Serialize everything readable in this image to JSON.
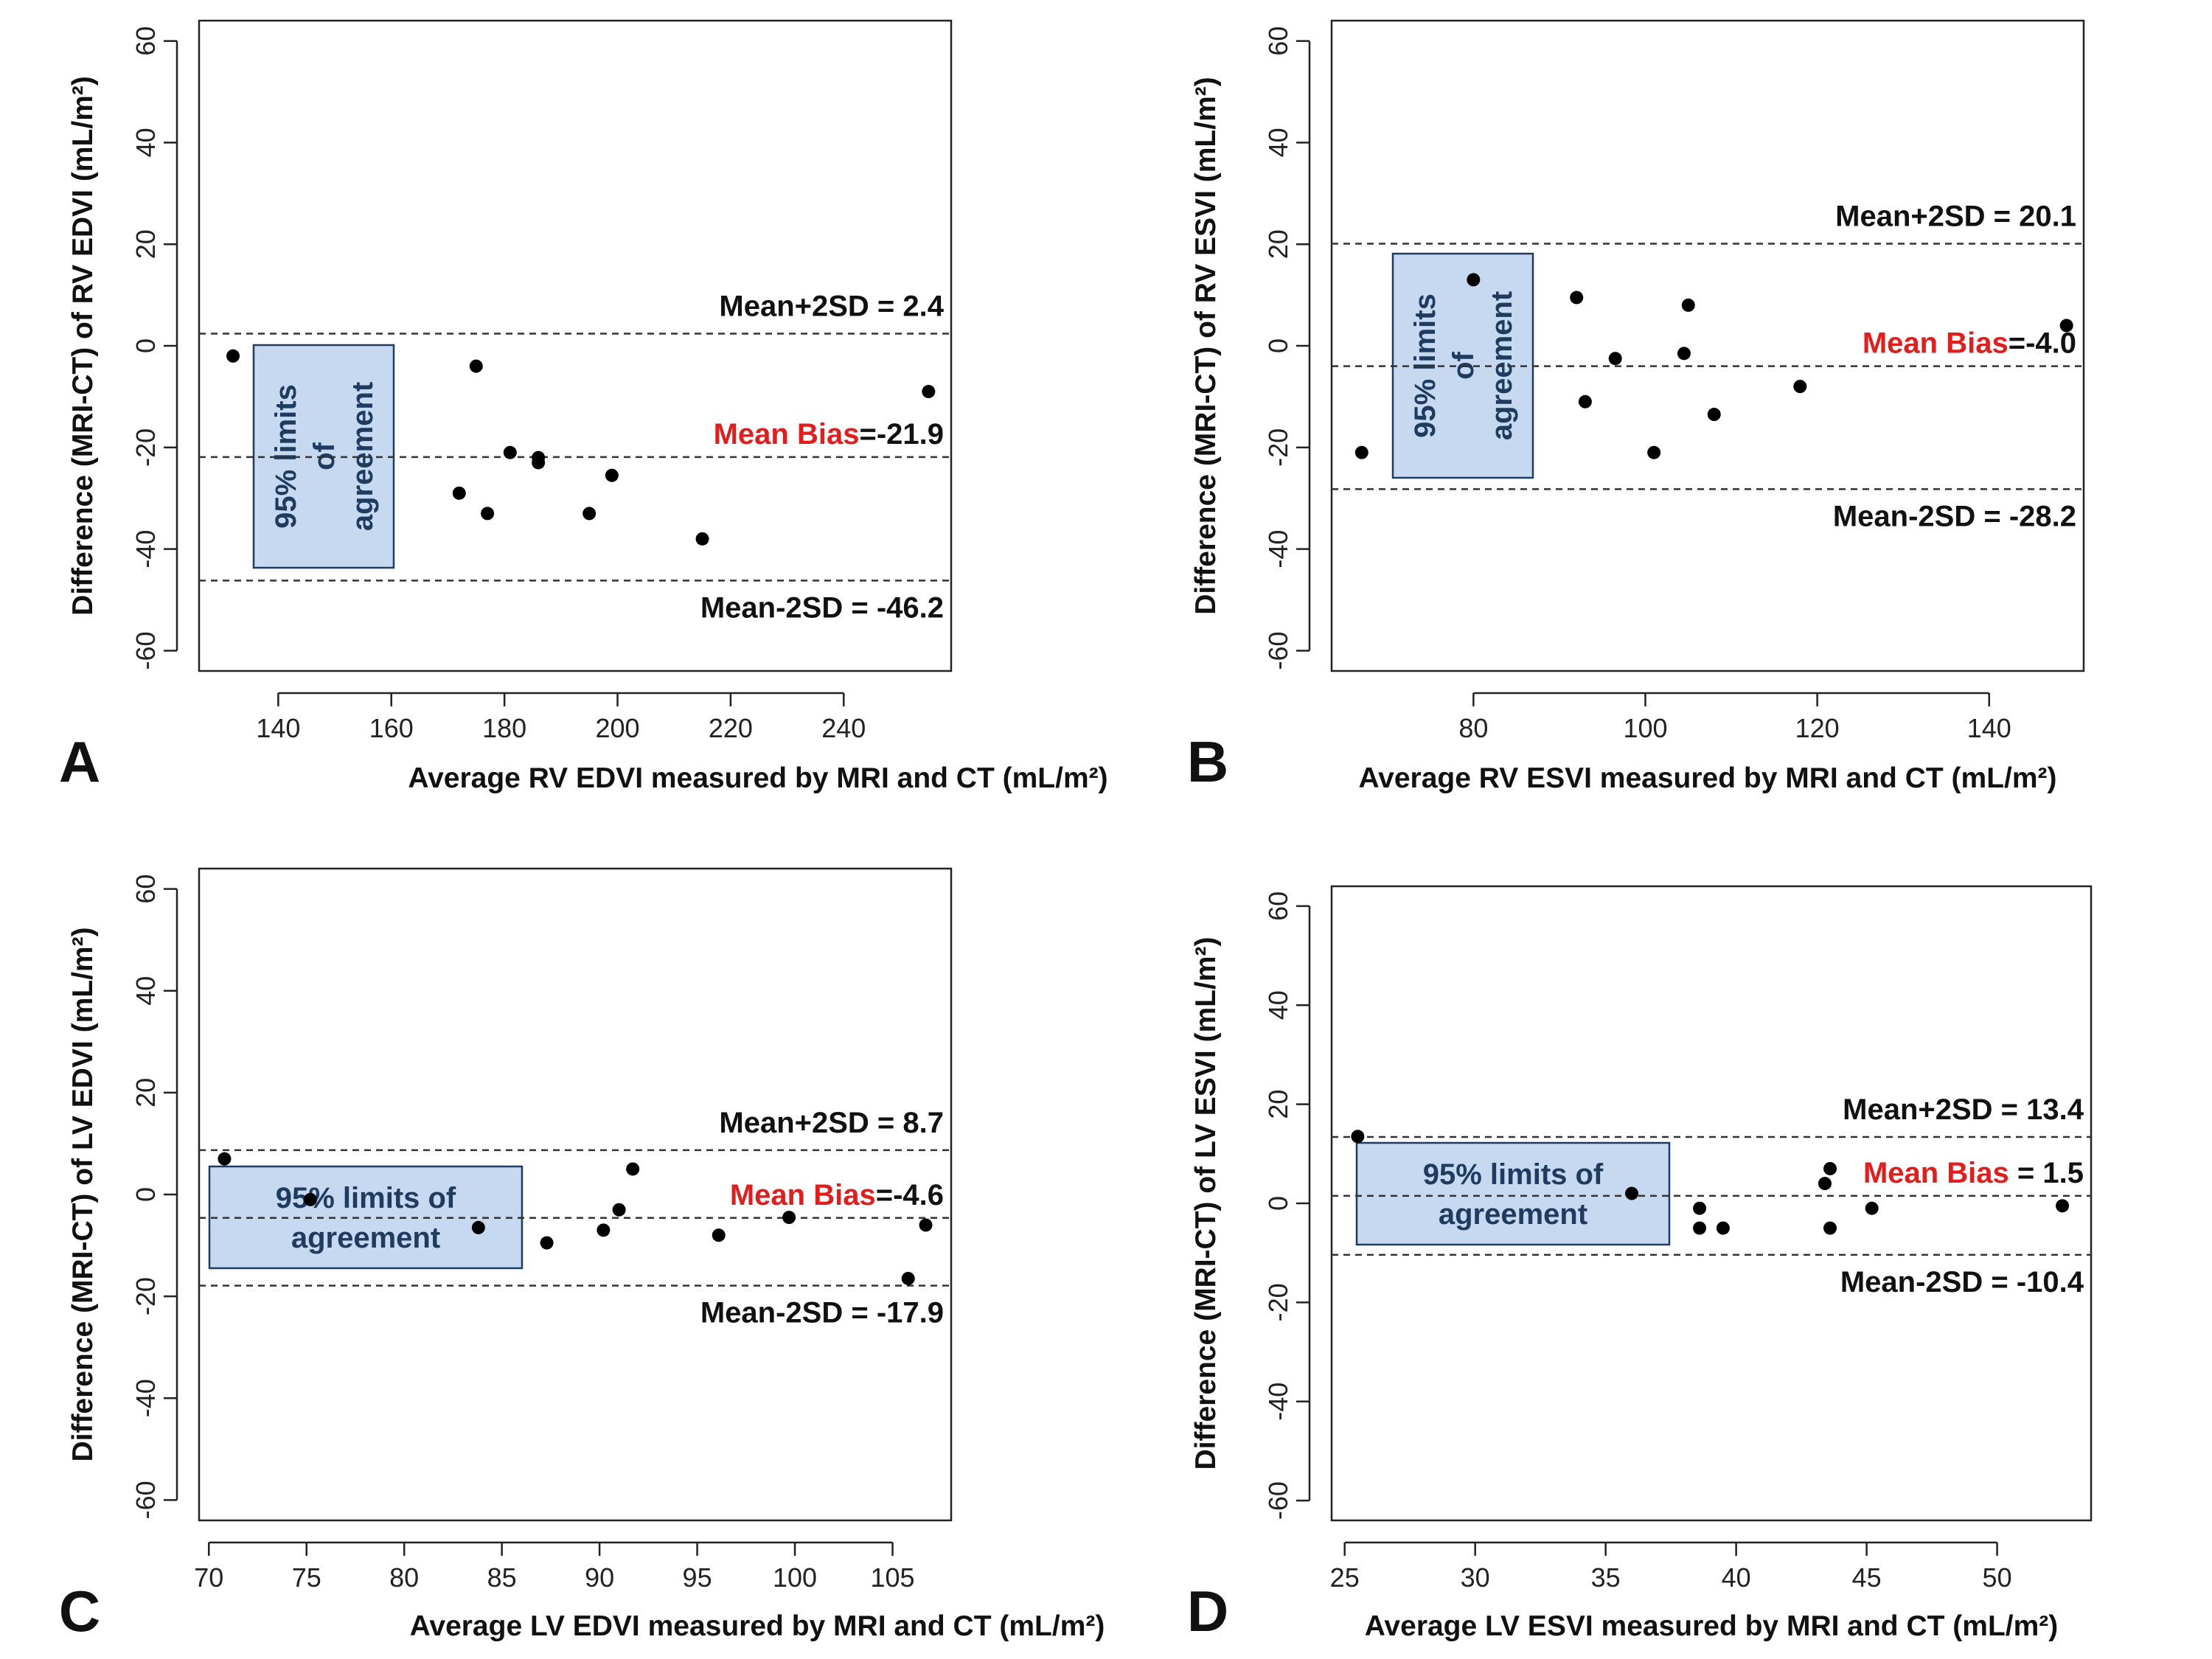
{
  "chart_data": [
    {
      "type": "scatter",
      "panel": "A",
      "xlabel": "Average RV EDVI measured by MRI and CT (mL/m²)",
      "ylabel": "Difference (MRI-CT) of RV EDVI (mL/m²)",
      "xlim": [
        126,
        259
      ],
      "ylim": [
        -64,
        64
      ],
      "xticks": [
        140,
        160,
        180,
        200,
        220,
        240
      ],
      "yticks": [
        -60,
        -40,
        -20,
        0,
        20,
        40,
        60
      ],
      "points": [
        {
          "x": 132,
          "y": -2
        },
        {
          "x": 175,
          "y": -4
        },
        {
          "x": 172,
          "y": -29
        },
        {
          "x": 177,
          "y": -33
        },
        {
          "x": 181,
          "y": -21
        },
        {
          "x": 186,
          "y": -22
        },
        {
          "x": 186,
          "y": -23
        },
        {
          "x": 195,
          "y": -33
        },
        {
          "x": 199,
          "y": -25.5
        },
        {
          "x": 215,
          "y": -38
        },
        {
          "x": 255,
          "y": -9
        }
      ],
      "lines": {
        "upper": {
          "label": "Mean+2SD = 2.4",
          "value": 2.4
        },
        "mean": {
          "label_red": "Mean Bias",
          "label_rest": "=-21.9",
          "value": -21.9
        },
        "lower": {
          "label": "Mean-2SD = -46.2",
          "value": -46.2
        }
      },
      "box": {
        "lines": [
          "95% limits",
          "of",
          "agreement"
        ],
        "orientation": "vertical"
      }
    },
    {
      "type": "scatter",
      "panel": "B",
      "xlabel": "Average RV ESVI measured by MRI and CT (mL/m²)",
      "ylabel": "Difference (MRI-CT) of RV ESVI (mL/m²)",
      "xlim": [
        63.5,
        151
      ],
      "ylim": [
        -64,
        64
      ],
      "xticks": [
        80,
        100,
        120,
        140
      ],
      "yticks": [
        -60,
        -40,
        -20,
        0,
        20,
        40,
        60
      ],
      "points": [
        {
          "x": 67,
          "y": -21
        },
        {
          "x": 80,
          "y": 13
        },
        {
          "x": 92,
          "y": 9.5
        },
        {
          "x": 93,
          "y": -11
        },
        {
          "x": 96.5,
          "y": -2.5
        },
        {
          "x": 101,
          "y": -21
        },
        {
          "x": 104.5,
          "y": -1.5
        },
        {
          "x": 105,
          "y": 8
        },
        {
          "x": 108,
          "y": -13.5
        },
        {
          "x": 118,
          "y": -8
        },
        {
          "x": 149,
          "y": 4
        }
      ],
      "lines": {
        "upper": {
          "label": "Mean+2SD = 20.1",
          "value": 20.1
        },
        "mean": {
          "label_red": "Mean Bias",
          "label_rest": "=-4.0",
          "value": -4.0
        },
        "lower": {
          "label": "Mean-2SD = -28.2",
          "value": -28.2
        }
      },
      "box": {
        "lines": [
          "95% limits",
          "of",
          "agreement"
        ],
        "orientation": "vertical"
      }
    },
    {
      "type": "scatter",
      "panel": "C",
      "xlabel": "Average LV EDVI measured by MRI and CT (mL/m²)",
      "ylabel": "Difference (MRI-CT) of LV EDVI (mL/m²)",
      "xlim": [
        69.5,
        108
      ],
      "ylim": [
        -64,
        64
      ],
      "xticks": [
        70,
        75,
        80,
        85,
        90,
        95,
        100,
        105
      ],
      "yticks": [
        -60,
        -40,
        -20,
        0,
        20,
        40,
        60
      ],
      "points": [
        {
          "x": 70.8,
          "y": 7
        },
        {
          "x": 75.2,
          "y": -1
        },
        {
          "x": 83.8,
          "y": -6.5
        },
        {
          "x": 87.3,
          "y": -9.5
        },
        {
          "x": 90.2,
          "y": -7
        },
        {
          "x": 91,
          "y": -3
        },
        {
          "x": 91.7,
          "y": 5
        },
        {
          "x": 96.1,
          "y": -8
        },
        {
          "x": 99.7,
          "y": -4.5
        },
        {
          "x": 105.8,
          "y": -16.5
        },
        {
          "x": 106.7,
          "y": -6
        }
      ],
      "lines": {
        "upper": {
          "label": "Mean+2SD = 8.7",
          "value": 8.7
        },
        "mean": {
          "label_red": "Mean Bias",
          "label_rest": "=-4.6",
          "value": -4.6
        },
        "lower": {
          "label": "Mean-2SD = -17.9",
          "value": -17.9
        }
      },
      "box": {
        "lines": [
          "95% limits of",
          "agreement"
        ],
        "orientation": "horizontal"
      }
    },
    {
      "type": "scatter",
      "panel": "D",
      "xlabel": "Average LV ESVI measured by MRI and CT (mL/m²)",
      "ylabel": "Difference (MRI-CT) of LV ESVI (mL/m²)",
      "xlim": [
        24.5,
        53.6
      ],
      "ylim": [
        -64,
        64
      ],
      "xticks": [
        25,
        30,
        35,
        40,
        45,
        50
      ],
      "yticks": [
        -60,
        -40,
        -20,
        0,
        20,
        40,
        60
      ],
      "points": [
        {
          "x": 25.5,
          "y": 13.5
        },
        {
          "x": 36,
          "y": 2
        },
        {
          "x": 38.6,
          "y": -1
        },
        {
          "x": 38.6,
          "y": -5
        },
        {
          "x": 39.5,
          "y": -5
        },
        {
          "x": 43.4,
          "y": 4
        },
        {
          "x": 43.6,
          "y": 7
        },
        {
          "x": 43.6,
          "y": -5
        },
        {
          "x": 45.2,
          "y": -1
        },
        {
          "x": 52.5,
          "y": -0.5
        }
      ],
      "lines": {
        "upper": {
          "label": "Mean+2SD = 13.4",
          "value": 13.4
        },
        "mean": {
          "label_red": "Mean Bias",
          "label_rest": " = 1.5",
          "value": 1.5
        },
        "lower": {
          "label": "Mean-2SD = -10.4",
          "value": -10.4
        }
      },
      "box": {
        "lines": [
          "95% limits of",
          "agreement"
        ],
        "orientation": "horizontal"
      }
    }
  ]
}
